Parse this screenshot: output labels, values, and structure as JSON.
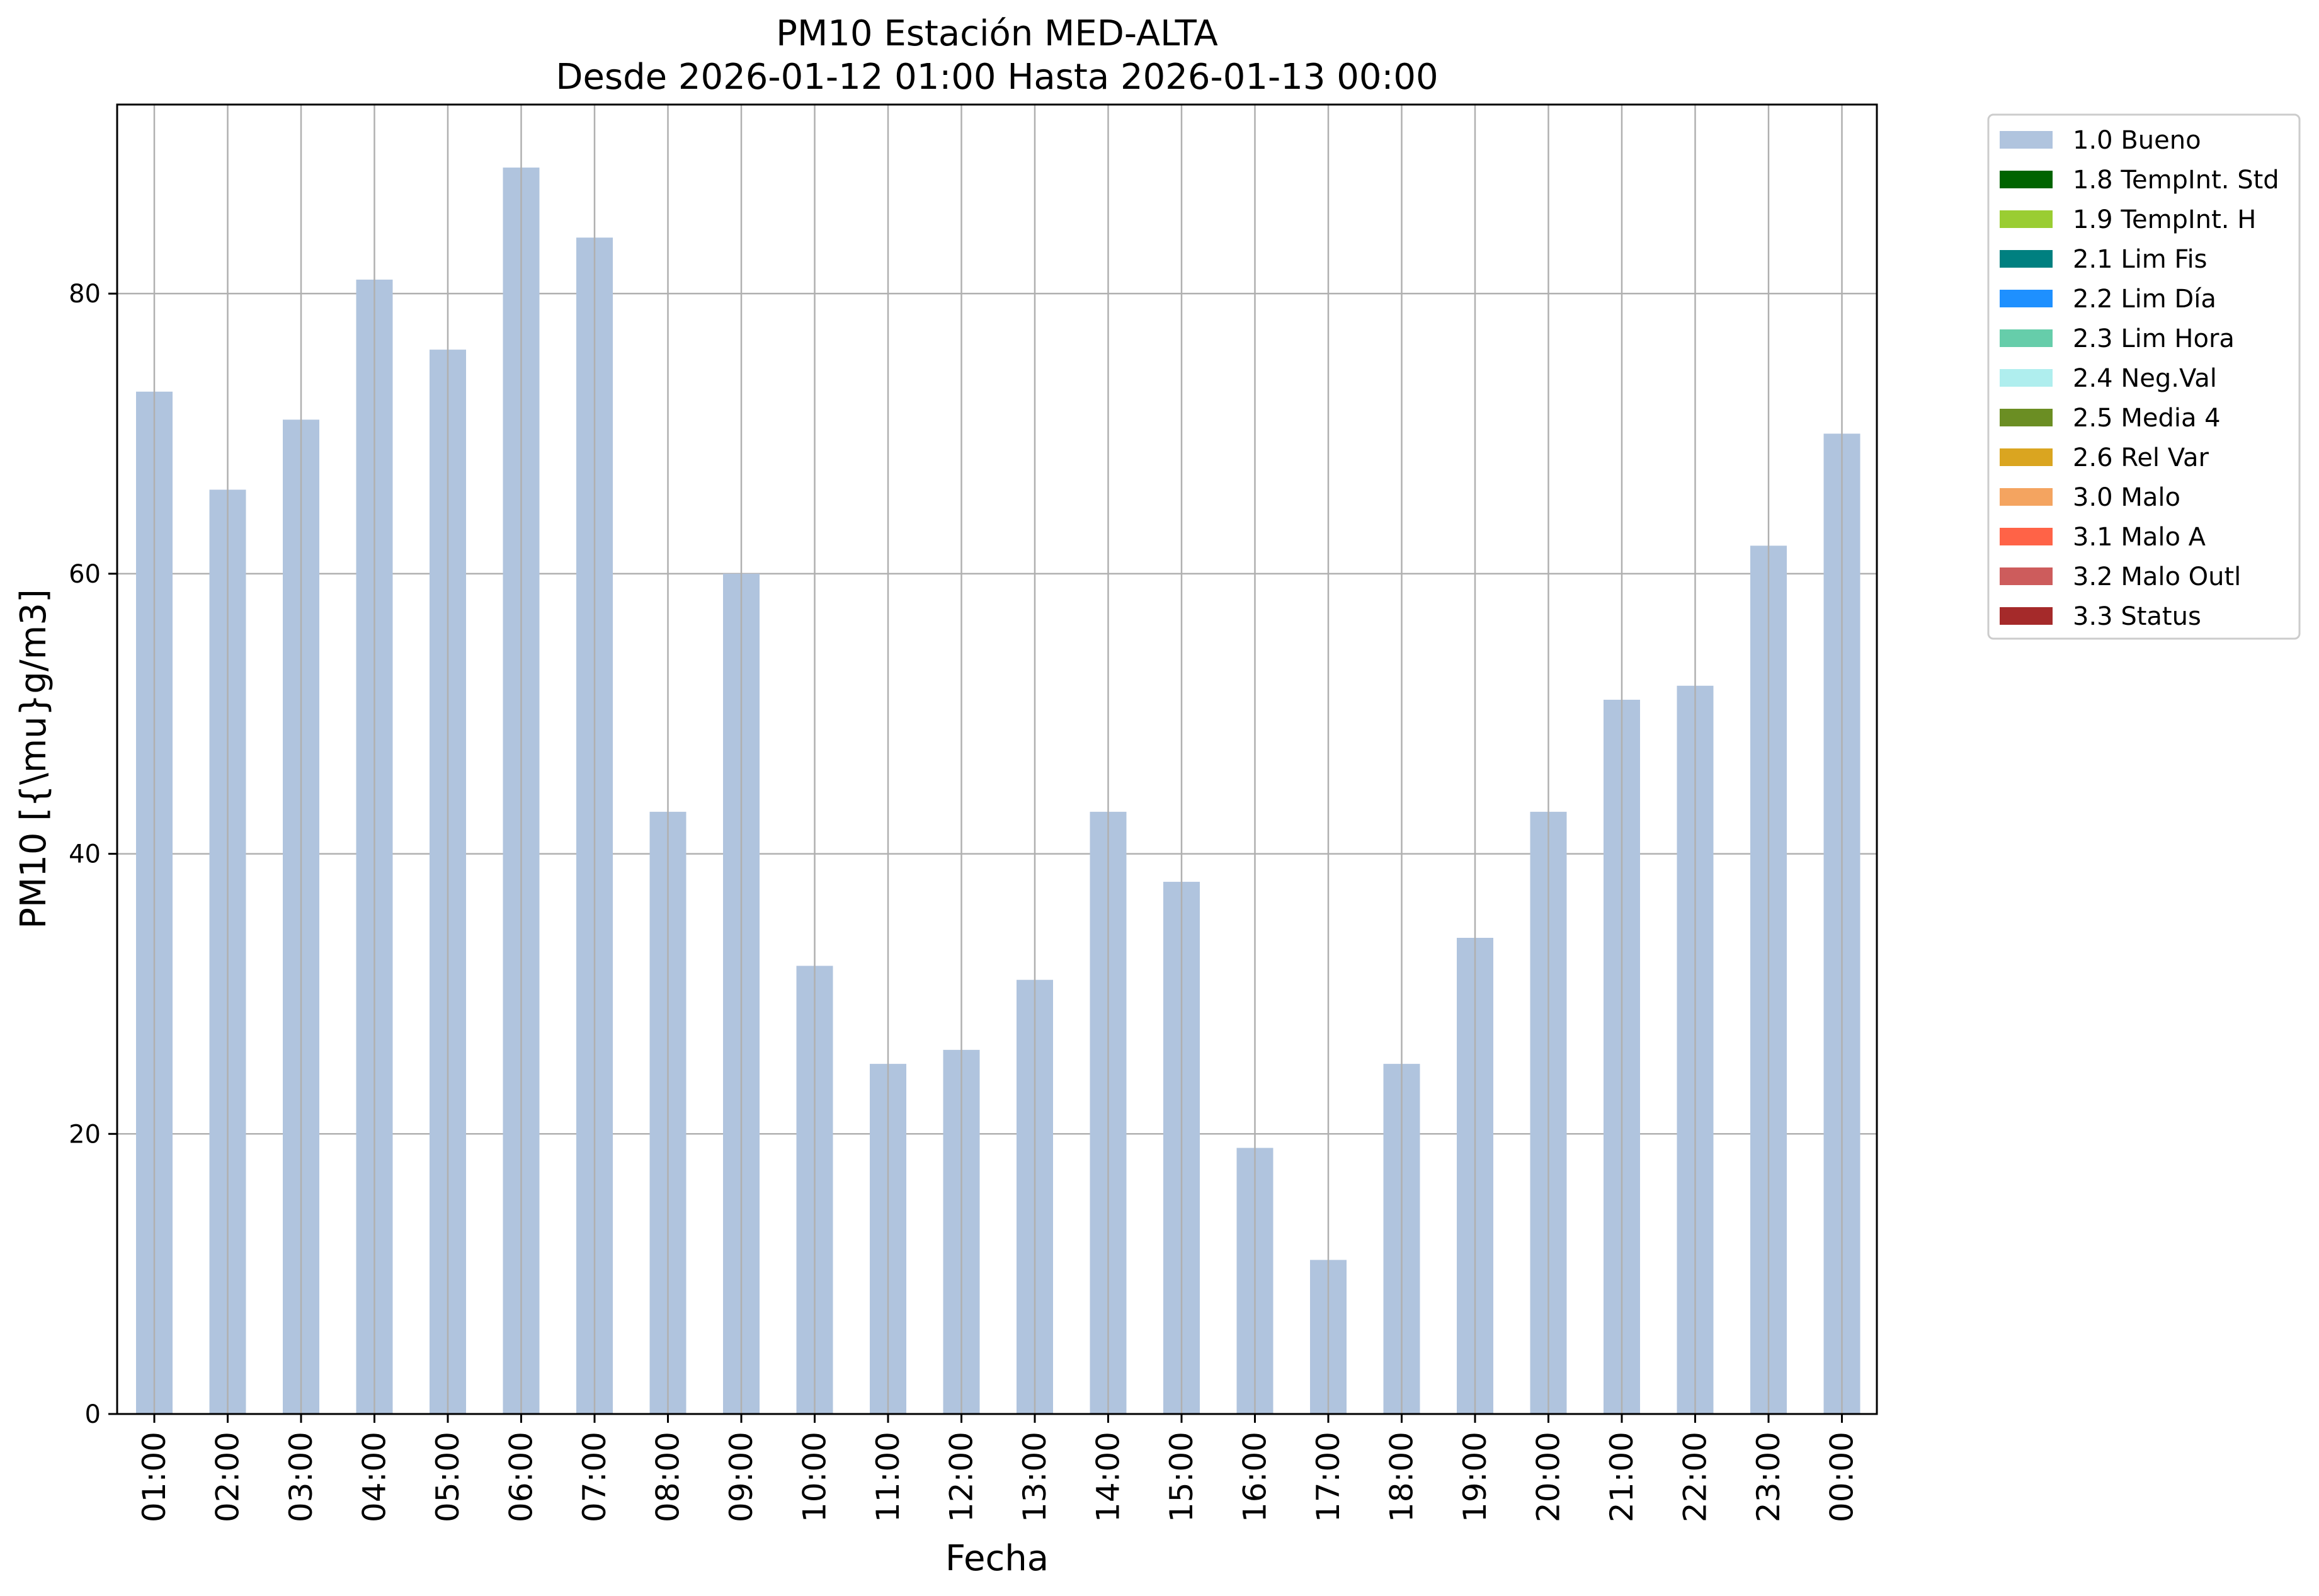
{
  "chart_data": {
    "type": "bar",
    "title": "PM10 Estación MED-ALTA",
    "subtitle": "Desde 2026-01-12 01:00 Hasta 2026-01-13 00:00",
    "xlabel": "Fecha",
    "ylabel": "PM10 [{\\mu}g/m3]",
    "categories": [
      "01:00",
      "02:00",
      "03:00",
      "04:00",
      "05:00",
      "06:00",
      "07:00",
      "08:00",
      "09:00",
      "10:00",
      "11:00",
      "12:00",
      "13:00",
      "14:00",
      "15:00",
      "16:00",
      "17:00",
      "18:00",
      "19:00",
      "20:00",
      "21:00",
      "22:00",
      "23:00",
      "00:00"
    ],
    "series": [
      {
        "name": "1.0 Bueno",
        "color": "#b0c4de",
        "values": [
          73,
          66,
          71,
          81,
          76,
          89,
          84,
          43,
          60,
          32,
          25,
          26,
          31,
          43,
          38,
          19,
          11,
          25,
          34,
          43,
          51,
          52,
          62,
          70
        ]
      }
    ],
    "ylim": [
      0,
      93.5
    ],
    "yticks": [
      0,
      20,
      40,
      60,
      80
    ],
    "grid": true,
    "legend_position": "outside-top-right",
    "legend": [
      {
        "label": "1.0 Bueno",
        "color": "#b0c4de"
      },
      {
        "label": "1.8 TempInt. Std",
        "color": "#006400"
      },
      {
        "label": "1.9 TempInt. H",
        "color": "#9acd32"
      },
      {
        "label": "2.1 Lim Fis",
        "color": "#008080"
      },
      {
        "label": "2.2 Lim Día",
        "color": "#1e90ff"
      },
      {
        "label": "2.3 Lim Hora",
        "color": "#66cdaa"
      },
      {
        "label": "2.4 Neg.Val",
        "color": "#afeeee"
      },
      {
        "label": "2.5 Media 4",
        "color": "#6b8e23"
      },
      {
        "label": "2.6 Rel Var",
        "color": "#daa520"
      },
      {
        "label": "3.0 Malo",
        "color": "#f4a460"
      },
      {
        "label": "3.1 Malo A",
        "color": "#ff6347"
      },
      {
        "label": "3.2 Malo Outl",
        "color": "#cd5c5c"
      },
      {
        "label": "3.3 Status",
        "color": "#a52a2a"
      }
    ]
  }
}
